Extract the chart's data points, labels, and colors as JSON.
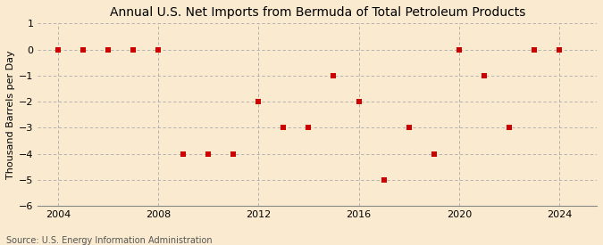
{
  "title": "Annual U.S. Net Imports from Bermuda of Total Petroleum Products",
  "ylabel": "Thousand Barrels per Day",
  "source": "Source: U.S. Energy Information Administration",
  "background_color": "#faebd0",
  "plot_background_color": "#faebd0",
  "grid_color": "#aaaaaa",
  "marker_color": "#cc0000",
  "years": [
    2004,
    2005,
    2006,
    2007,
    2008,
    2009,
    2010,
    2011,
    2012,
    2013,
    2014,
    2015,
    2016,
    2017,
    2018,
    2019,
    2020,
    2021,
    2022,
    2023,
    2024
  ],
  "values": [
    0,
    0,
    0,
    0,
    0,
    -4,
    -4,
    -4,
    -2,
    -3,
    -3,
    -1,
    -2,
    -5,
    -3,
    -4,
    0,
    -1,
    -3,
    0,
    0
  ],
  "ylim": [
    -6,
    1
  ],
  "yticks": [
    1,
    0,
    -1,
    -2,
    -3,
    -4,
    -5,
    -6
  ],
  "xticks": [
    2004,
    2008,
    2012,
    2016,
    2020,
    2024
  ],
  "xlim_left": 2003.2,
  "xlim_right": 2025.5,
  "title_fontsize": 10,
  "label_fontsize": 8,
  "tick_fontsize": 8,
  "source_fontsize": 7
}
